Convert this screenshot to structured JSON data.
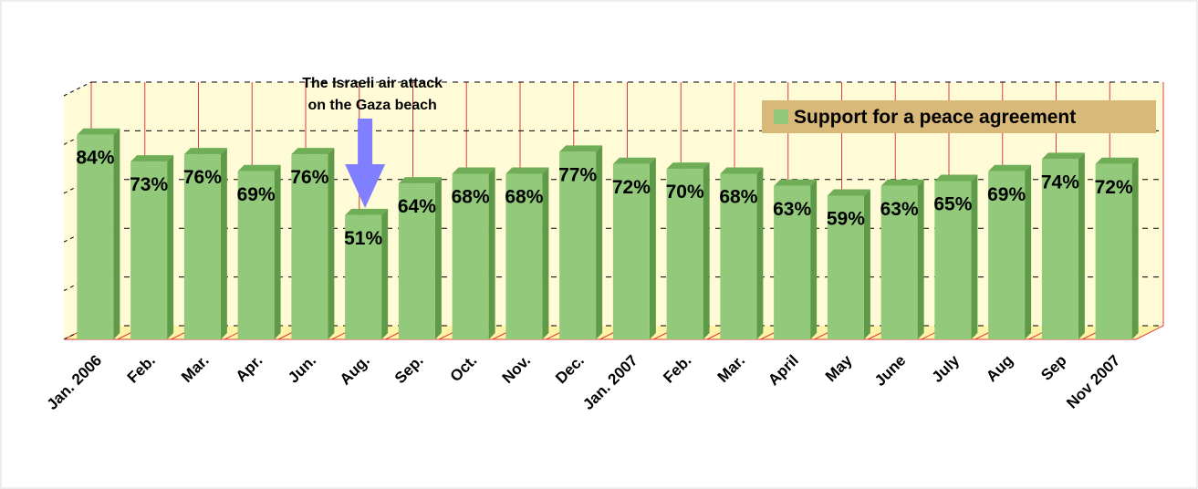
{
  "chart_data": {
    "type": "bar",
    "categories": [
      "Jan. 2006",
      "Feb.",
      "Mar.",
      "Apr.",
      "Jun.",
      "Aug.",
      "Sep.",
      "Oct.",
      "Nov.",
      "Dec.",
      "Jan. 2007",
      "Feb.",
      "Mar.",
      "April",
      "May",
      "June",
      "July",
      "Aug",
      "Sep",
      "Nov 2007"
    ],
    "series": [
      {
        "name": "Support for a peace agreement",
        "color": "#92c97a",
        "values": [
          84,
          73,
          76,
          69,
          76,
          51,
          64,
          68,
          68,
          77,
          72,
          70,
          68,
          63,
          59,
          63,
          65,
          69,
          74,
          72
        ],
        "value_labels": [
          "84%",
          "73%",
          "76%",
          "69%",
          "76%",
          "51%",
          "64%",
          "68%",
          "68%",
          "77%",
          "72%",
          "70%",
          "68%",
          "63%",
          "59%",
          "63%",
          "65%",
          "69%",
          "74%",
          "72%"
        ]
      }
    ],
    "ylim": [
      0,
      100
    ],
    "yticks": [
      0,
      20,
      40,
      60,
      80,
      100
    ],
    "grid": true,
    "legend": "upper right",
    "annotation": {
      "lines": [
        "The Israeli air attack",
        "on the Gaza beach"
      ],
      "at": "Aug."
    }
  }
}
